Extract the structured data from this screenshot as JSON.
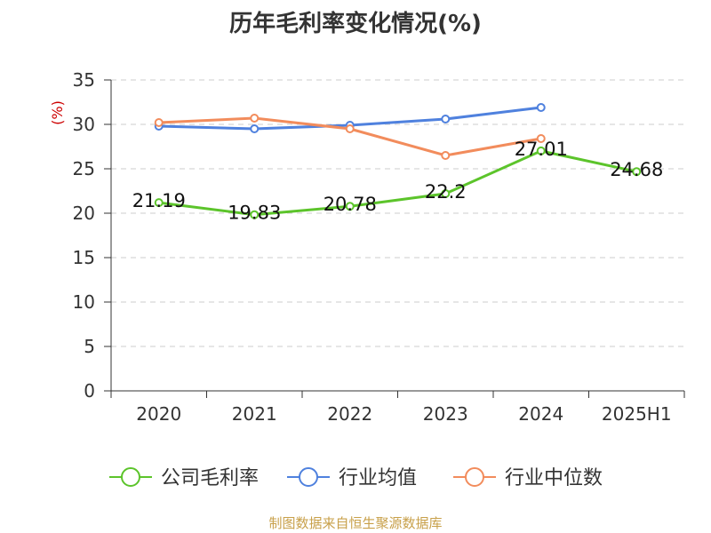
{
  "title": "历年毛利率变化情况(%)",
  "source_note": "制图数据来自恒生聚源数据库",
  "chart_data": {
    "type": "line",
    "ylabel": "(%)",
    "ylim": [
      0,
      35
    ],
    "yticks": [
      0,
      5,
      10,
      15,
      20,
      25,
      30,
      35
    ],
    "grid": true,
    "legend_position": "bottom",
    "categories": [
      "2020",
      "2021",
      "2022",
      "2023",
      "2024",
      "2025H1"
    ],
    "series": [
      {
        "name": "公司毛利率",
        "color": "#5cc42b",
        "values": [
          21.19,
          19.83,
          20.78,
          22.2,
          27.01,
          24.68
        ],
        "labels": [
          "21.19",
          "19.83",
          "20.78",
          "22.2",
          "27.01",
          "24.68"
        ]
      },
      {
        "name": "行业均值",
        "color": "#4f81de",
        "values": [
          29.8,
          29.5,
          29.9,
          30.6,
          31.9,
          null
        ]
      },
      {
        "name": "行业中位数",
        "color": "#f28c5c",
        "values": [
          30.2,
          30.7,
          29.5,
          26.5,
          28.4,
          null
        ]
      }
    ]
  }
}
